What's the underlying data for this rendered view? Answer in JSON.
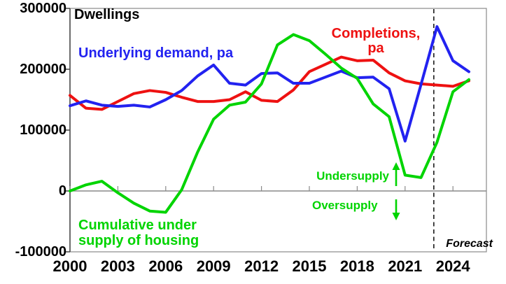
{
  "title": "Dwellings",
  "series_labels": {
    "demand": "Underlying demand, pa",
    "completions_line1": "Completions,",
    "completions_line2": "pa",
    "cumulative_line1": "Cumulative under",
    "cumulative_line2": "supply of housing"
  },
  "annotations": {
    "undersupply": "Undersupply",
    "oversupply": "Oversupply",
    "forecast": "Forecast"
  },
  "colors": {
    "demand": "#2222f0",
    "completions": "#ee1111",
    "cumulative": "#00d400",
    "axis": "#8a8a8a",
    "axis_dark": "#444444",
    "forecast_line": "#1a1a1a"
  },
  "chart_data": {
    "type": "line",
    "title": "Dwellings",
    "x": [
      2000,
      2001,
      2002,
      2003,
      2004,
      2005,
      2006,
      2007,
      2008,
      2009,
      2010,
      2011,
      2012,
      2013,
      2014,
      2015,
      2016,
      2017,
      2018,
      2019,
      2020,
      2021,
      2022,
      2023,
      2024,
      2025
    ],
    "series": [
      {
        "name": "Underlying demand, pa",
        "key": "demand",
        "values": [
          140000,
          148000,
          141000,
          139000,
          141000,
          138000,
          150000,
          165000,
          189000,
          207000,
          177000,
          174000,
          193000,
          194000,
          177000,
          177000,
          187000,
          197000,
          186000,
          187000,
          168000,
          82000,
          175000,
          270000,
          214000,
          196000
        ]
      },
      {
        "name": "Completions, pa",
        "key": "completions",
        "values": [
          157000,
          136000,
          134000,
          147000,
          160000,
          165000,
          162000,
          154000,
          147000,
          147000,
          150000,
          163000,
          149000,
          147000,
          166000,
          196000,
          208000,
          220000,
          214000,
          215000,
          194000,
          181000,
          176000,
          174000,
          172000,
          181000
        ]
      },
      {
        "name": "Cumulative under supply of housing",
        "key": "cumulative",
        "values": [
          0,
          10000,
          16000,
          -3000,
          -20000,
          -33000,
          -35000,
          2000,
          64000,
          118000,
          141000,
          146000,
          176000,
          240000,
          257000,
          247000,
          225000,
          202000,
          185000,
          143000,
          122000,
          26000,
          22000,
          80000,
          163000,
          183000
        ]
      }
    ],
    "x_ticks": [
      {
        "value": 2000,
        "label": "2000"
      },
      {
        "value": 2003,
        "label": "2003"
      },
      {
        "value": 2006,
        "label": "2006"
      },
      {
        "value": 2009,
        "label": "2009"
      },
      {
        "value": 2012,
        "label": "2012"
      },
      {
        "value": 2015,
        "label": "2015"
      },
      {
        "value": 2018,
        "label": "2018"
      },
      {
        "value": 2021,
        "label": "2021"
      },
      {
        "value": 2024,
        "label": "2024"
      }
    ],
    "y_ticks": [
      {
        "value": 300000,
        "label": "300000"
      },
      {
        "value": 200000,
        "label": "200000"
      },
      {
        "value": 100000,
        "label": "100000"
      },
      {
        "value": 0,
        "label": "0"
      },
      {
        "value": -100000,
        "label": "-100000"
      }
    ],
    "ylim": [
      -100000,
      300000
    ],
    "xlim": [
      2000,
      2026.1
    ],
    "grid": "zero-line-only",
    "legend": "inline-colored-labels",
    "forecast_divider_year": 2022.8
  }
}
